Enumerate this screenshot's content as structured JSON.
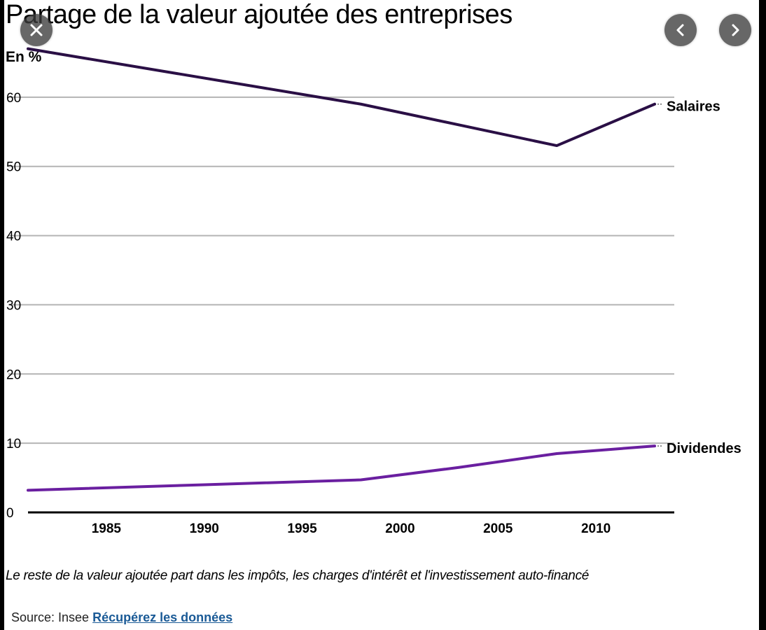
{
  "title": "Partage de la valeur ajoutée des entreprises",
  "unit_label": "En %",
  "note": "Le reste de la valeur ajoutée part dans les impôts, les charges d'intérêt et l'investissement auto-financé",
  "source": {
    "prefix": "Source: Insee",
    "link_label": "Récupérez les données"
  },
  "controls": {
    "close_icon": "close-icon",
    "prev_icon": "chevron-left-icon",
    "next_icon": "chevron-right-icon"
  },
  "colors": {
    "salaires": "#2a0f45",
    "dividendes": "#6a1fa0",
    "grid": "#b4b4b4",
    "axis": "#000000",
    "link": "#1a5a96"
  },
  "chart_data": {
    "type": "line",
    "title": "Partage de la valeur ajoutée des entreprises",
    "ylabel": "En %",
    "xlabel": "",
    "xlim": [
      1980,
      2014
    ],
    "ylim": [
      0,
      70
    ],
    "x_ticks": [
      1985,
      1990,
      1995,
      2000,
      2005,
      2010
    ],
    "y_ticks": [
      0,
      10,
      20,
      30,
      40,
      50,
      60
    ],
    "grid": true,
    "legend": "inline labels at line ends",
    "series": [
      {
        "name": "Salaires",
        "x": [
          1981,
          1998,
          2008,
          2013
        ],
        "values": [
          67,
          59,
          53,
          59
        ]
      },
      {
        "name": "Dividendes",
        "x": [
          1981,
          1990,
          1998,
          2003,
          2008,
          2013
        ],
        "values": [
          3.2,
          4,
          4.7,
          6.5,
          8.5,
          9.6
        ]
      }
    ]
  }
}
